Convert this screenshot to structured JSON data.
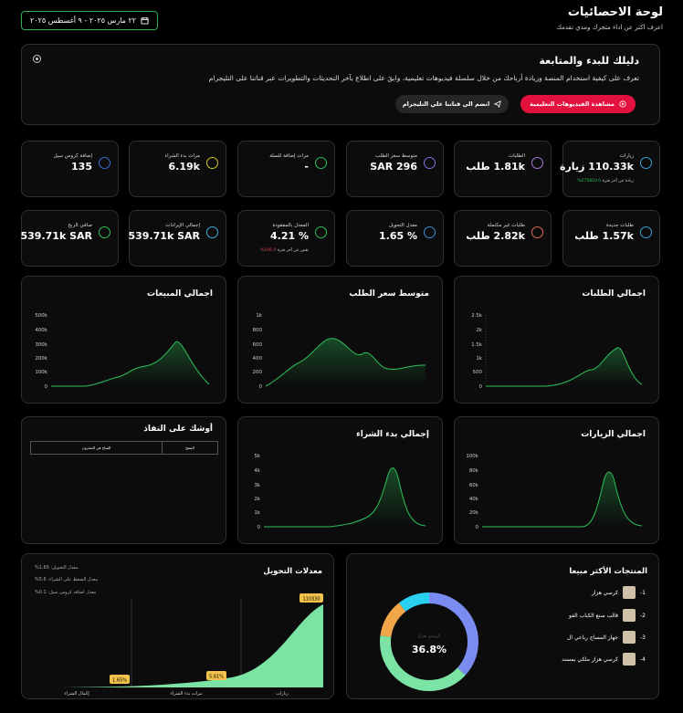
{
  "header": {
    "title": "لوحة الاحصائيات",
    "subtitle": "اعرف اكثر عن اداء متجرك ومدي تقدمك",
    "date_range": "٢٢ مارس ٢٠٢٥ - ٩ أغسطس ٢٠٢٥"
  },
  "guide": {
    "title": "دليلك للبدء والمتابعة",
    "text": "تعرف على كيفية استخدام المنصة وزيادة أرباحك من خلال سلسلة فيديوهات تعليمية، وابقَ على اطلاع بآخر التحديثات والتطويرات عبر قناتنا على التليجرام",
    "primary_button": "مشاهدة الفيديوهات التعليمية",
    "secondary_button": "انضم الي قناتنا علي التليجرام"
  },
  "stats_row1": [
    {
      "label": "زيارات",
      "value": "110.33k زيارة",
      "note_value": "275810.0%",
      "note_text": "زيادة عن آخر فترة",
      "color": "#3a9fd8"
    },
    {
      "label": "الطلبات",
      "value": "1.81k طلب",
      "color": "#a678d8"
    },
    {
      "label": "متوسط سعر الطلب",
      "value": "SAR 296",
      "color": "#8a6ae0"
    },
    {
      "label": "مرات إضافة للسلة",
      "value": "-",
      "color": "#2fbf5a"
    },
    {
      "label": "مرات بدء الشراء",
      "value": "6.19k",
      "color": "#d4c52a"
    },
    {
      "label": "إضافة كروس سيل",
      "value": "135",
      "color": "#3a6fd8"
    }
  ],
  "stats_row2": [
    {
      "label": "طلبات جديدة",
      "value": "1.57k طلب",
      "color": "#3a9fd8"
    },
    {
      "label": "طلبات غير مكتملة",
      "value": "2.82k طلب",
      "color": "#e06a5a"
    },
    {
      "label": "معدل التحويل",
      "value": "% 1.65",
      "color": "#3a8fd8"
    },
    {
      "label": "المعدل بالمفقودة",
      "value": "% 4.21",
      "note_value": "106.0%",
      "note_text": "نقص عن آخر فترة",
      "color": "#2fbf5a"
    },
    {
      "label": "إجمالي الإيرادات",
      "value": "539.71k SAR",
      "color": "#3aaed8"
    },
    {
      "label": "صافي الربح",
      "value": "539.71k SAR",
      "color": "#2fbf5a"
    }
  ],
  "charts": {
    "orders": {
      "title": "اجمالي الطلبات",
      "ticks": [
        "2.5k",
        "2k",
        "1.5k",
        "1k",
        "500",
        "0"
      ]
    },
    "avg_price": {
      "title": "متوسط سعر الطلب",
      "ticks": [
        "1k",
        "800",
        "600",
        "400",
        "200",
        "0"
      ]
    },
    "sales": {
      "title": "اجمالي المبيعات",
      "ticks": [
        "500k",
        "400k",
        "300k",
        "200k",
        "100k",
        "0"
      ]
    },
    "visits": {
      "title": "اجمالي الزيارات",
      "ticks": [
        "100k",
        "80k",
        "60k",
        "40k",
        "20k",
        "0"
      ]
    },
    "checkout": {
      "title": "إجمالي بدء الشراء",
      "ticks": [
        "5k",
        "4k",
        "3k",
        "2k",
        "1k",
        "0"
      ]
    }
  },
  "stock_table": {
    "title": "أوشك على النفاذ",
    "col_product": "المنتج",
    "col_stock": "المتاح في المخزون"
  },
  "top_products": {
    "title": "المنتجات الأكثر مبيعا",
    "center_label": "كرسي هزاز",
    "center_value": "36.8%",
    "items": [
      {
        "rank": "1-",
        "name": "كرسي هزاز"
      },
      {
        "rank": "2-",
        "name": "قالب صنع الكباب الفو"
      },
      {
        "rank": "3-",
        "name": "جهاز المساج رباعي ال"
      },
      {
        "rank": "4-",
        "name": "كرسي هزاز ملكي بمسند"
      }
    ],
    "slices": [
      {
        "value": 36.8,
        "color": "#7b8cf0"
      },
      {
        "value": 40.2,
        "color": "#7be3a4"
      },
      {
        "value": 12.5,
        "color": "#f2a64a"
      },
      {
        "value": 10.5,
        "color": "#29d0f0"
      }
    ]
  },
  "conversion": {
    "title": "معدلات التحويل",
    "notes": [
      "معدل التحويل: 1.65%",
      "معدل الضغط على الشراء: 5.6%",
      "معدل اضافة كروس سيل: 0.1%"
    ],
    "labels": [
      "زيارات",
      "مرات بدء الشراء",
      "إكمال الشراء"
    ],
    "badges": [
      "110330",
      "5.61%",
      "1.65%"
    ]
  }
}
